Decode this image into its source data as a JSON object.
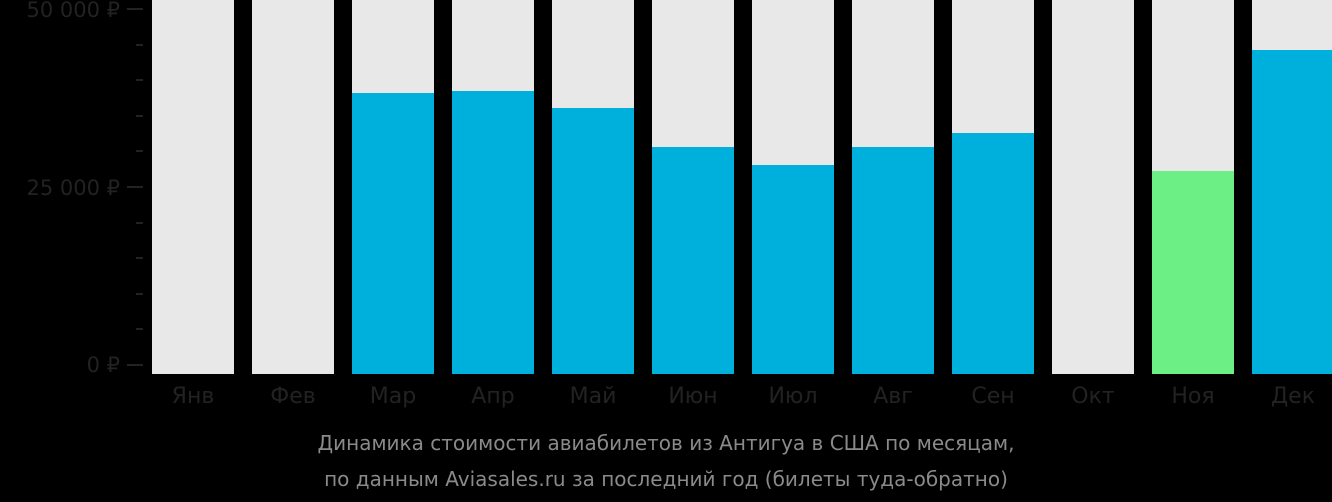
{
  "chart_data": {
    "type": "bar",
    "title": "Динамика стоимости авиабилетов из Антигуа в США по месяцам, по данным Aviasales.ru за последний год (билеты туда-обратно)",
    "xlabel": "",
    "ylabel": "",
    "ylim": [
      0,
      50000
    ],
    "yticks": [
      "0 ₽",
      "25 000 ₽",
      "50 000 ₽"
    ],
    "categories": [
      "Янв",
      "Фев",
      "Мар",
      "Апр",
      "Май",
      "Июн",
      "Июл",
      "Авг",
      "Сен",
      "Окт",
      "Ноя",
      "Дек"
    ],
    "values": [
      null,
      null,
      38200,
      38500,
      36100,
      30600,
      28100,
      30600,
      32600,
      null,
      27200,
      44200
    ],
    "colors": {
      "default": "#00b0dc",
      "min": "#6cf085",
      "background": "#e8e8e8"
    },
    "highlight_min_index": 10,
    "grid": false,
    "legend": "none"
  },
  "axis": {
    "y_top": "50 000 ₽",
    "y_mid": "25 000 ₽",
    "y_zero": "0 ₽"
  },
  "caption": {
    "line1": "Динамика стоимости авиабилетов из Антигуа в США по месяцам,",
    "line2": "по данным Aviasales.ru за последний год (билеты туда-обратно)"
  }
}
